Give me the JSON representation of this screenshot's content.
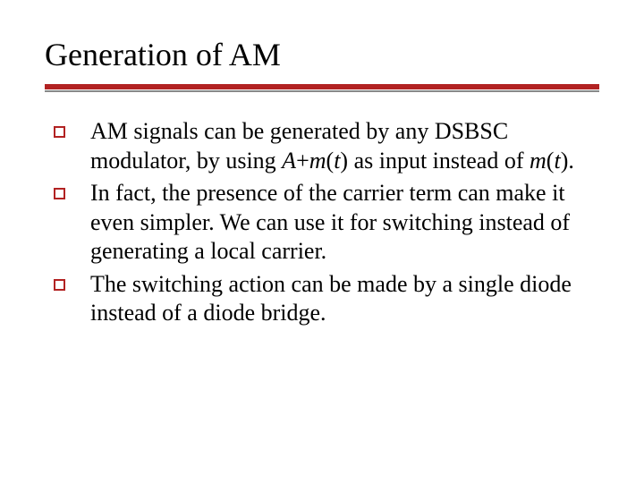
{
  "title": "Generation of AM",
  "rule_color": "#b22222",
  "bullets": [
    {
      "parts": [
        {
          "t": "AM signals can be generated by any DSBSC modulator, by using ",
          "i": false
        },
        {
          "t": "A",
          "i": true
        },
        {
          "t": "+",
          "i": false
        },
        {
          "t": "m",
          "i": true
        },
        {
          "t": "(",
          "i": false
        },
        {
          "t": "t",
          "i": true
        },
        {
          "t": ") as input instead of ",
          "i": false
        },
        {
          "t": "m",
          "i": true
        },
        {
          "t": "(",
          "i": false
        },
        {
          "t": "t",
          "i": true
        },
        {
          "t": ").",
          "i": false
        }
      ]
    },
    {
      "parts": [
        {
          "t": "In fact, the presence of the carrier term can make it even simpler. We can use it for switching instead of generating a local carrier.",
          "i": false
        }
      ]
    },
    {
      "parts": [
        {
          "t": "The switching action can be made by a single diode instead of a diode bridge.",
          "i": false
        }
      ]
    }
  ]
}
